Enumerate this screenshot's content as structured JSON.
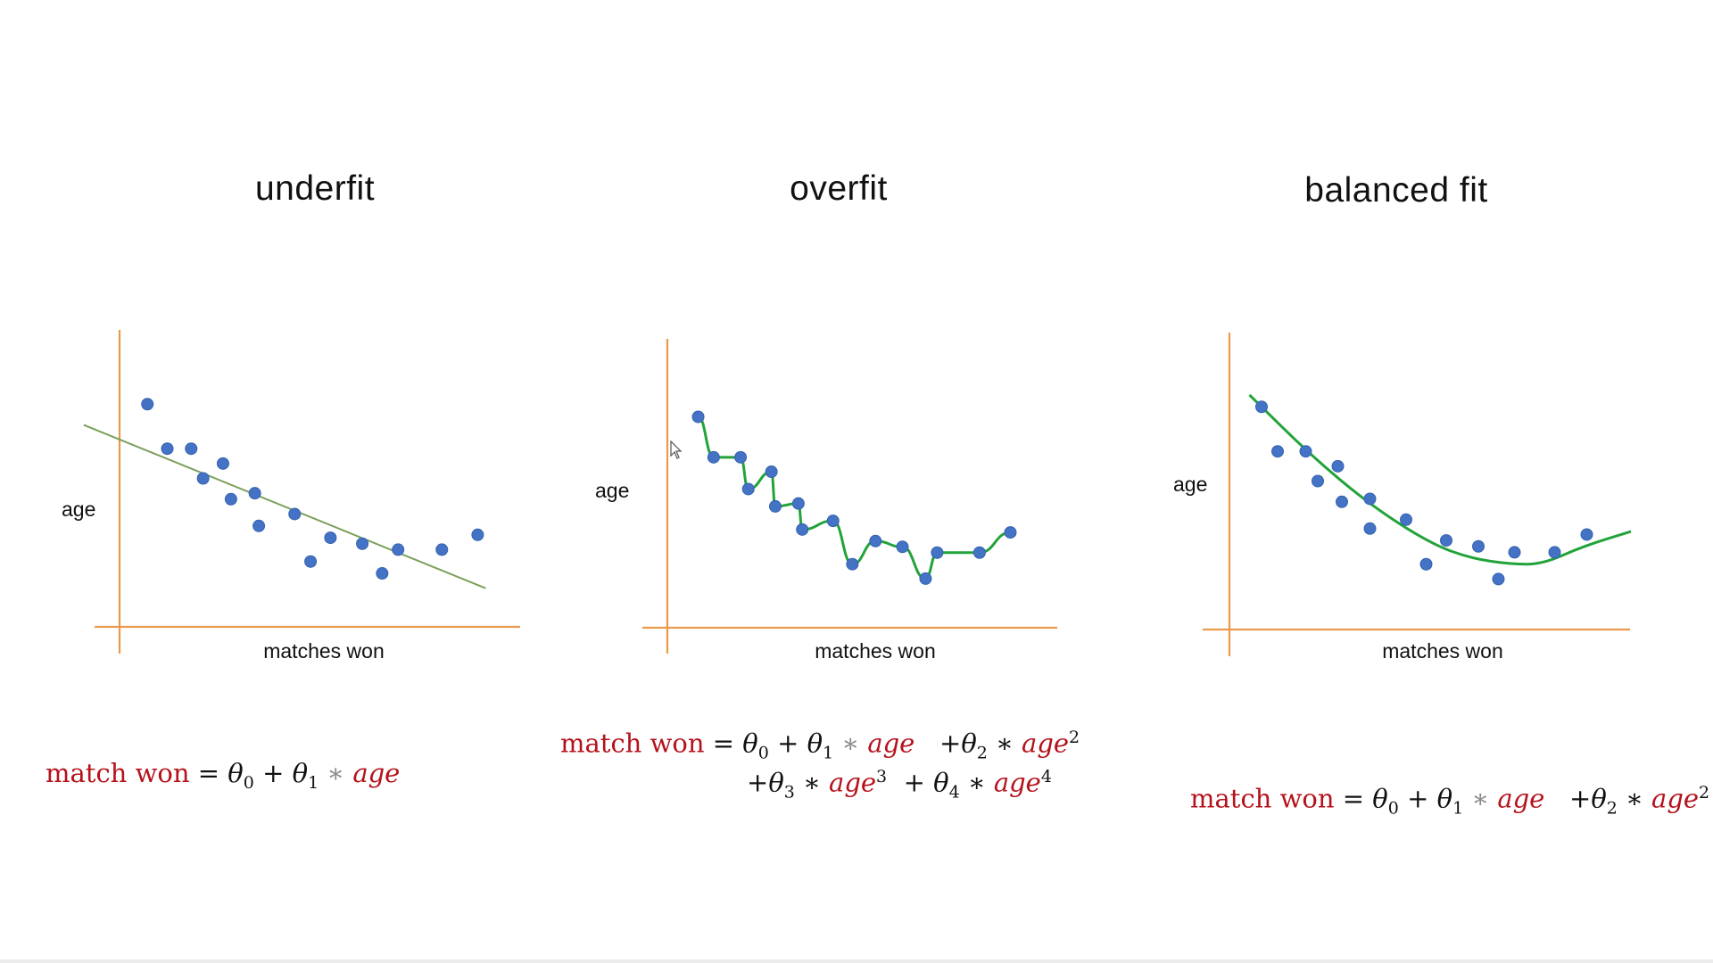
{
  "chart_data": [
    {
      "type": "scatter",
      "title": "underfit",
      "xlabel": "matches won",
      "ylabel": "age",
      "xlim": [
        0,
        100
      ],
      "ylim": [
        0,
        100
      ],
      "points": [
        {
          "x": 7,
          "y": 75
        },
        {
          "x": 12,
          "y": 60
        },
        {
          "x": 18,
          "y": 60
        },
        {
          "x": 21,
          "y": 50
        },
        {
          "x": 26,
          "y": 55
        },
        {
          "x": 28,
          "y": 43
        },
        {
          "x": 34,
          "y": 45
        },
        {
          "x": 35,
          "y": 34
        },
        {
          "x": 44,
          "y": 38
        },
        {
          "x": 48,
          "y": 22
        },
        {
          "x": 53,
          "y": 30
        },
        {
          "x": 61,
          "y": 28
        },
        {
          "x": 66,
          "y": 18
        },
        {
          "x": 70,
          "y": 26
        },
        {
          "x": 81,
          "y": 26
        },
        {
          "x": 90,
          "y": 31
        }
      ],
      "fit": {
        "kind": "linear",
        "color": "#7aa05a",
        "points": [
          [
            -9,
            68
          ],
          [
            92,
            13
          ]
        ]
      }
    },
    {
      "type": "scatter",
      "title": "overfit",
      "xlabel": "matches won",
      "ylabel": "age",
      "xlim": [
        0,
        100
      ],
      "ylim": [
        0,
        100
      ],
      "points": [
        {
          "x": 8,
          "y": 73
        },
        {
          "x": 12,
          "y": 59
        },
        {
          "x": 19,
          "y": 59
        },
        {
          "x": 21,
          "y": 48
        },
        {
          "x": 27,
          "y": 54
        },
        {
          "x": 28,
          "y": 42
        },
        {
          "x": 34,
          "y": 43
        },
        {
          "x": 35,
          "y": 34
        },
        {
          "x": 43,
          "y": 37
        },
        {
          "x": 48,
          "y": 22
        },
        {
          "x": 54,
          "y": 30
        },
        {
          "x": 61,
          "y": 28
        },
        {
          "x": 67,
          "y": 17
        },
        {
          "x": 70,
          "y": 26
        },
        {
          "x": 81,
          "y": 26
        },
        {
          "x": 89,
          "y": 33
        }
      ],
      "fit": {
        "kind": "interpolating",
        "color": "#22a33a"
      }
    },
    {
      "type": "scatter",
      "title": "balanced fit",
      "xlabel": "matches won",
      "ylabel": "age",
      "xlim": [
        0,
        100
      ],
      "ylim": [
        0,
        100
      ],
      "points": [
        {
          "x": 8,
          "y": 75
        },
        {
          "x": 12,
          "y": 60
        },
        {
          "x": 19,
          "y": 60
        },
        {
          "x": 22,
          "y": 50
        },
        {
          "x": 27,
          "y": 55
        },
        {
          "x": 28,
          "y": 43
        },
        {
          "x": 35,
          "y": 44
        },
        {
          "x": 35,
          "y": 34
        },
        {
          "x": 44,
          "y": 37
        },
        {
          "x": 49,
          "y": 22
        },
        {
          "x": 54,
          "y": 30
        },
        {
          "x": 62,
          "y": 28
        },
        {
          "x": 67,
          "y": 17
        },
        {
          "x": 71,
          "y": 26
        },
        {
          "x": 81,
          "y": 26
        },
        {
          "x": 89,
          "y": 32
        }
      ],
      "fit": {
        "kind": "quadratic",
        "color": "#22a33a",
        "points": [
          [
            5,
            79
          ],
          [
            20,
            59
          ],
          [
            35,
            42
          ],
          [
            50,
            29
          ],
          [
            60,
            24
          ],
          [
            70,
            22
          ],
          [
            78,
            22
          ],
          [
            88,
            28
          ],
          [
            100,
            33
          ]
        ]
      }
    }
  ],
  "formulas": {
    "lhs": "match won",
    "eq": "=",
    "theta": "θ",
    "plus": "+",
    "star": "∗",
    "age": "age",
    "n0": "0",
    "n1": "1",
    "n2": "2",
    "n3": "3",
    "n4": "4"
  },
  "colors": {
    "axis": "#e99a4c",
    "point": "#4472c4",
    "formula_red": "#b5121b"
  }
}
